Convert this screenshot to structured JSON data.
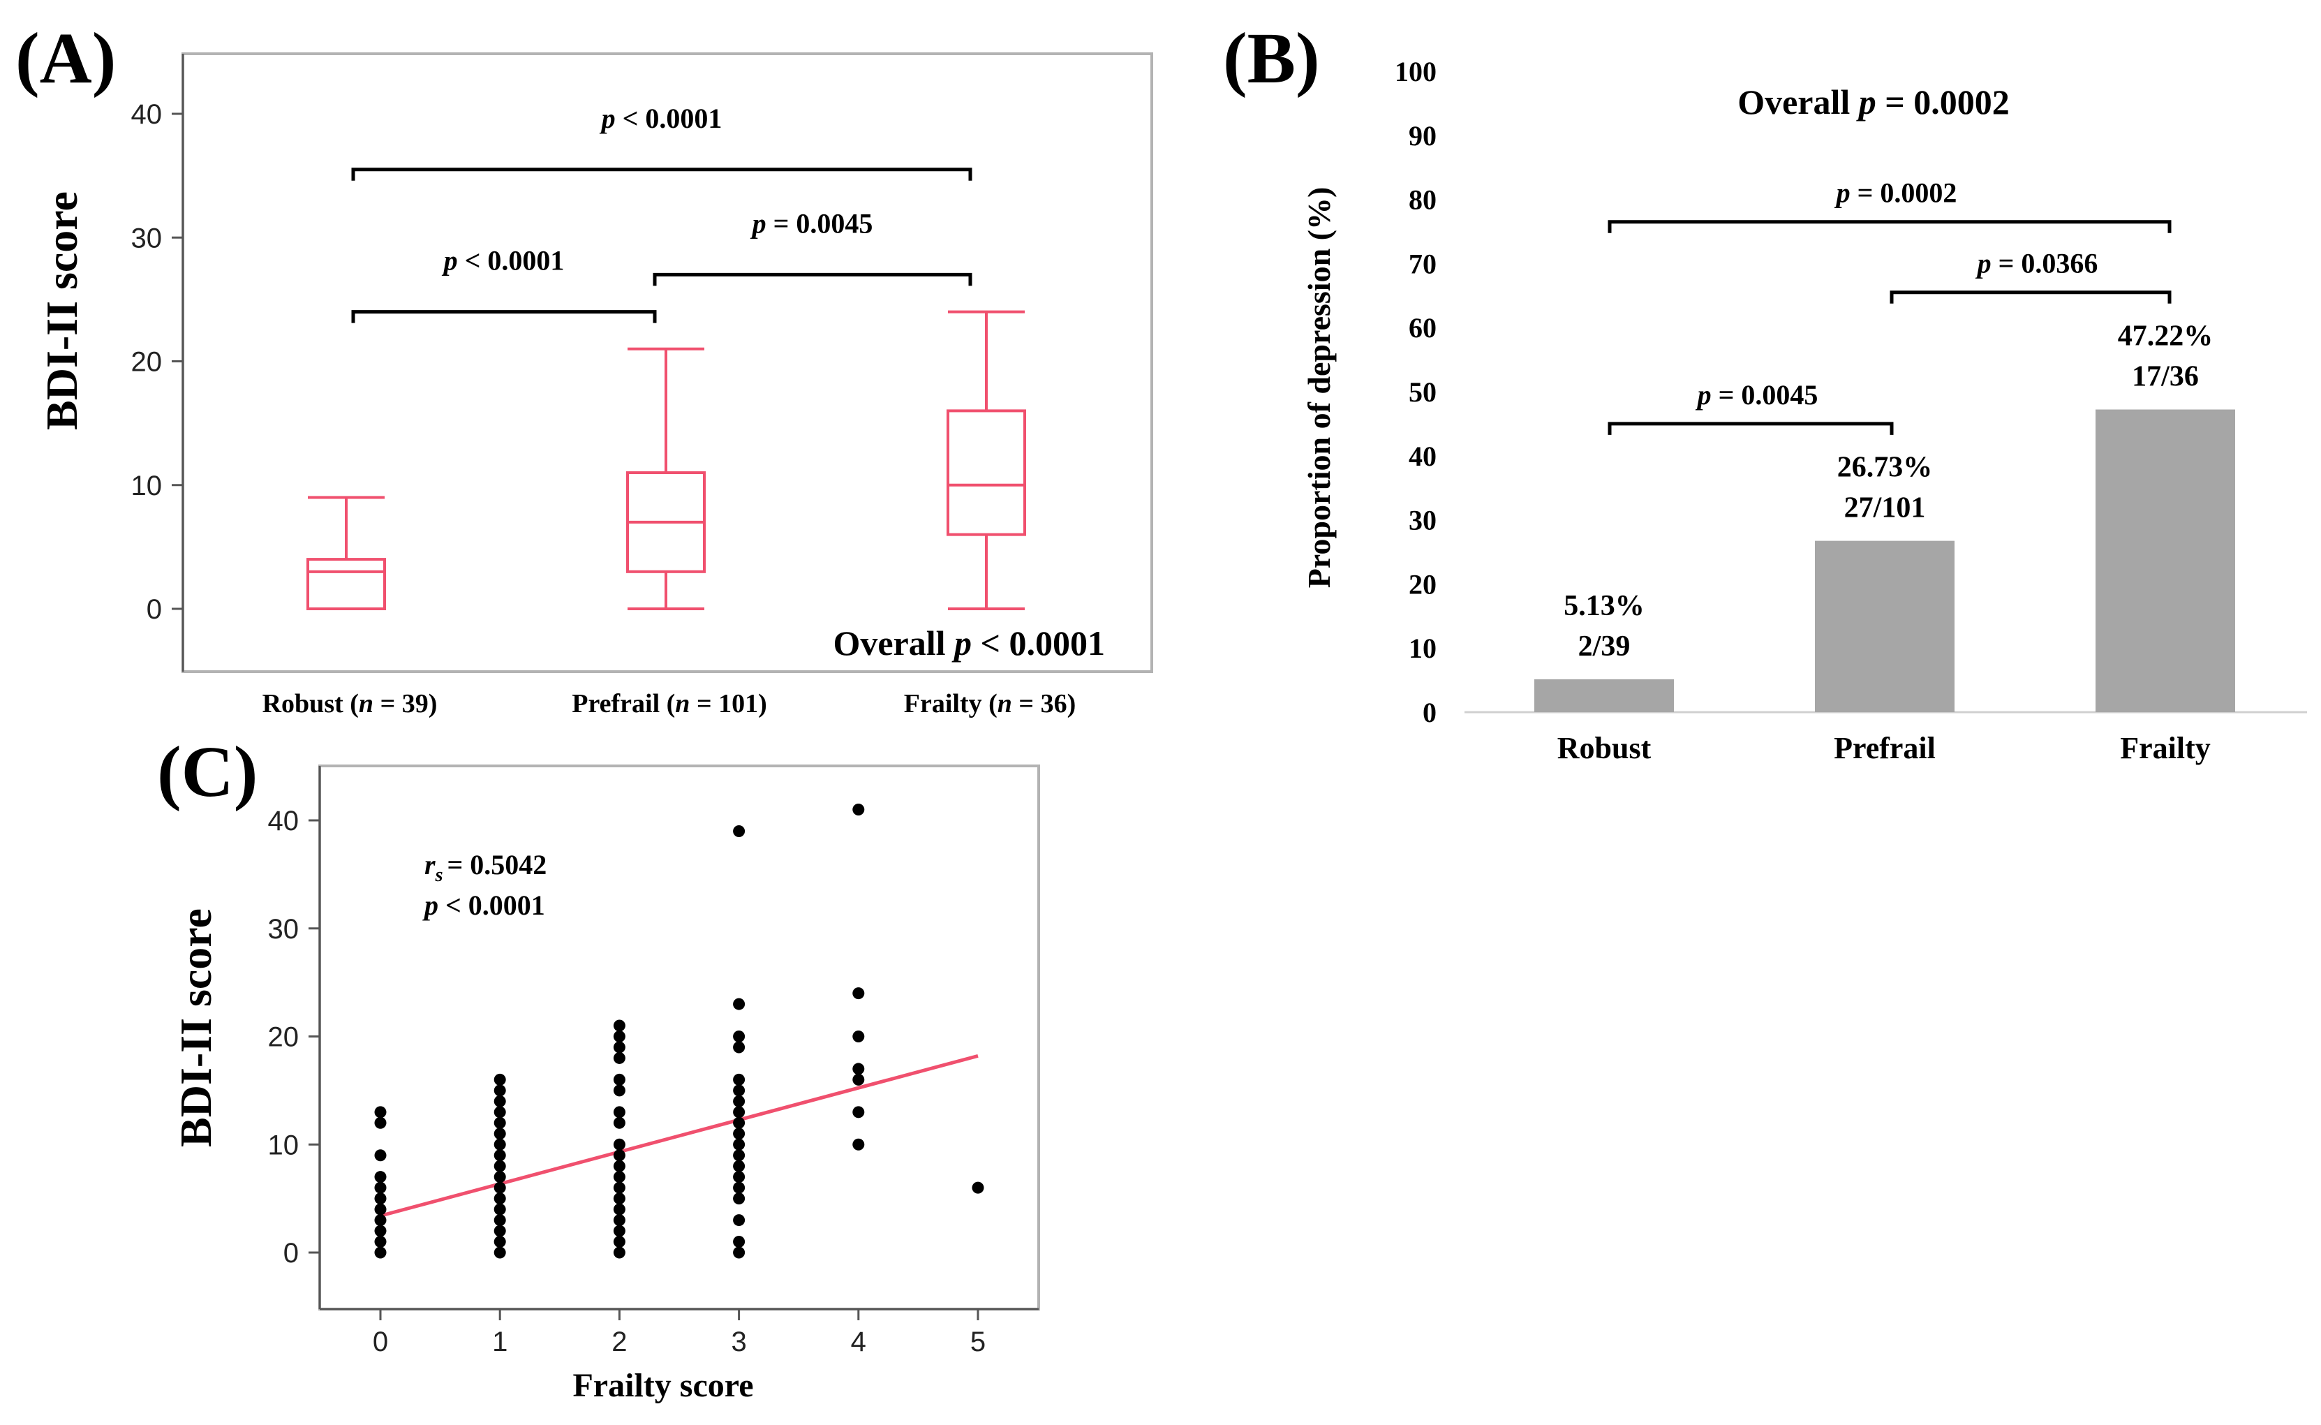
{
  "chart_data": [
    {
      "panel": "(A)",
      "type": "box",
      "ylabel": "BDI-II score",
      "ylim": [
        -5,
        45
      ],
      "yticks": [
        "0",
        "10",
        "20",
        "30",
        "40"
      ],
      "categories": [
        {
          "name": "Robust",
          "n_label": "n",
          "n_value": "= 39)"
        },
        {
          "name": "Prefrail",
          "n_label": "n",
          "n_value": "= 101)"
        },
        {
          "name": "Frailty",
          "n_label": "n",
          "n_value": "= 36)"
        }
      ],
      "boxes": [
        {
          "min": 0,
          "q1": 0,
          "median": 3,
          "q3": 4,
          "max": 9
        },
        {
          "min": 0,
          "q1": 3,
          "median": 7,
          "q3": 11,
          "max": 21
        },
        {
          "min": 0,
          "q1": 6,
          "median": 10,
          "q3": 16,
          "max": 24
        }
      ],
      "comparisons": [
        {
          "from": 0,
          "to": 2,
          "y": 35.5,
          "p_label": "p",
          "p_text": "< 0.0001"
        },
        {
          "from": 0,
          "to": 1,
          "y": 24,
          "p_label": "p",
          "p_text": "< 0.0001"
        },
        {
          "from": 1,
          "to": 2,
          "y": 27,
          "p_label": "p",
          "p_text": "= 0.0045"
        }
      ],
      "overall": {
        "label": "Overall",
        "p_label": "p",
        "p_text": "< 0.0001"
      },
      "color": "#f0506e"
    },
    {
      "panel": "(B)",
      "type": "bar",
      "ylabel": "Proportion of depression (%)",
      "ylim": [
        0,
        100
      ],
      "yticks": [
        "0",
        "10",
        "20",
        "30",
        "40",
        "50",
        "60",
        "70",
        "80",
        "90",
        "100"
      ],
      "categories": [
        "Robust",
        "Prefrail",
        "Frailty"
      ],
      "values": [
        5.13,
        26.73,
        47.22
      ],
      "value_labels": [
        "5.13%",
        "26.73%",
        "47.22%"
      ],
      "count_labels": [
        "2/39",
        "27/101",
        "17/36"
      ],
      "comparisons": [
        {
          "from": 0,
          "to": 2,
          "y": 76.5,
          "p_label": "p",
          "p_text": "= 0.0002"
        },
        {
          "from": 1,
          "to": 2,
          "y": 65.5,
          "p_label": "p",
          "p_text": "= 0.0366"
        },
        {
          "from": 0,
          "to": 1,
          "y": 45,
          "p_label": "p",
          "p_text": "= 0.0045"
        }
      ],
      "overall": {
        "label": "Overall",
        "p_label": "p",
        "p_text": "= 0.0002"
      },
      "bar_color": "#a6a6a6"
    },
    {
      "panel": "(C)",
      "type": "scatter",
      "xlabel": "Frailty score",
      "ylabel": "BDI-II score",
      "xlim": [
        -0.5,
        5.5
      ],
      "ylim": [
        -5,
        45
      ],
      "xticks": [
        "0",
        "1",
        "2",
        "3",
        "4",
        "5"
      ],
      "yticks": [
        "0",
        "10",
        "20",
        "30",
        "40"
      ],
      "points": [
        [
          0,
          0
        ],
        [
          0,
          1
        ],
        [
          0,
          2
        ],
        [
          0,
          3
        ],
        [
          0,
          4
        ],
        [
          0,
          5
        ],
        [
          0,
          6
        ],
        [
          0,
          7
        ],
        [
          0,
          9
        ],
        [
          0,
          12
        ],
        [
          0,
          13
        ],
        [
          1,
          0
        ],
        [
          1,
          1
        ],
        [
          1,
          2
        ],
        [
          1,
          3
        ],
        [
          1,
          4
        ],
        [
          1,
          5
        ],
        [
          1,
          6
        ],
        [
          1,
          7
        ],
        [
          1,
          8
        ],
        [
          1,
          9
        ],
        [
          1,
          10
        ],
        [
          1,
          11
        ],
        [
          1,
          12
        ],
        [
          1,
          13
        ],
        [
          1,
          14
        ],
        [
          1,
          15
        ],
        [
          1,
          16
        ],
        [
          2,
          0
        ],
        [
          2,
          1
        ],
        [
          2,
          2
        ],
        [
          2,
          3
        ],
        [
          2,
          4
        ],
        [
          2,
          5
        ],
        [
          2,
          6
        ],
        [
          2,
          7
        ],
        [
          2,
          8
        ],
        [
          2,
          9
        ],
        [
          2,
          10
        ],
        [
          2,
          12
        ],
        [
          2,
          13
        ],
        [
          2,
          15
        ],
        [
          2,
          16
        ],
        [
          2,
          18
        ],
        [
          2,
          19
        ],
        [
          2,
          20
        ],
        [
          2,
          21
        ],
        [
          3,
          0
        ],
        [
          3,
          1
        ],
        [
          3,
          3
        ],
        [
          3,
          5
        ],
        [
          3,
          6
        ],
        [
          3,
          7
        ],
        [
          3,
          8
        ],
        [
          3,
          9
        ],
        [
          3,
          10
        ],
        [
          3,
          11
        ],
        [
          3,
          12
        ],
        [
          3,
          13
        ],
        [
          3,
          14
        ],
        [
          3,
          15
        ],
        [
          3,
          16
        ],
        [
          3,
          19
        ],
        [
          3,
          20
        ],
        [
          3,
          23
        ],
        [
          3,
          39
        ],
        [
          4,
          10
        ],
        [
          4,
          13
        ],
        [
          4,
          16
        ],
        [
          4,
          17
        ],
        [
          4,
          20
        ],
        [
          4,
          24
        ],
        [
          4,
          41
        ],
        [
          5,
          6
        ]
      ],
      "regression": {
        "x0": 0,
        "y0": 3.4,
        "x1": 5,
        "y1": 18.2
      },
      "stats": {
        "rs_label": "r",
        "rs_sub": "s",
        "rs_text": "= 0.5042",
        "p_label": "p",
        "p_text": "< 0.0001"
      },
      "point_color": "#000000",
      "line_color": "#f0506e"
    }
  ]
}
